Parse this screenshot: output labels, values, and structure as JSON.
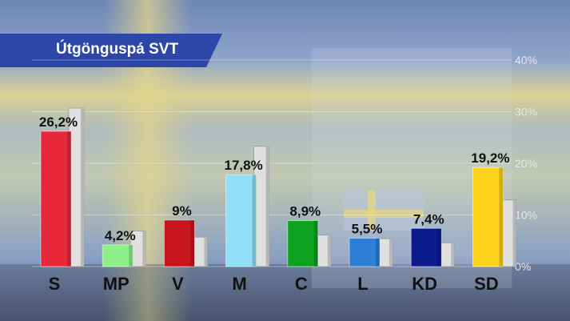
{
  "title": "Útgönguspá SVT",
  "colors": {
    "title_bar": "#2c47a8",
    "background_sky": "#8fa5c9",
    "background_flag_yellow": "#d6c77a",
    "previous_bar": "#e0e0e0"
  },
  "chart_data": {
    "type": "bar",
    "title": "Útgönguspá SVT",
    "categories": [
      "S",
      "MP",
      "V",
      "M",
      "C",
      "L",
      "KD",
      "SD"
    ],
    "values": [
      26.2,
      4.2,
      9,
      17.8,
      8.9,
      5.5,
      7.4,
      19.2
    ],
    "value_labels": [
      "26,2%",
      "4,2%",
      "9%",
      "17,8%",
      "8,9%",
      "5,5%",
      "7,4%",
      "19,2%"
    ],
    "colors": [
      "#e8283a",
      "#8ef08a",
      "#c8151d",
      "#8fe0f8",
      "#0fa120",
      "#2e7fd8",
      "#0b1a8c",
      "#ffd21c"
    ],
    "comparison_values": [
      30.7,
      6.9,
      5.7,
      23.3,
      6.1,
      5.4,
      4.6,
      12.9
    ],
    "y_ticks": [
      "0%",
      "10%",
      "20%",
      "30%",
      "40%"
    ],
    "ylim": [
      0,
      40
    ],
    "grid": true,
    "legend": "none"
  }
}
